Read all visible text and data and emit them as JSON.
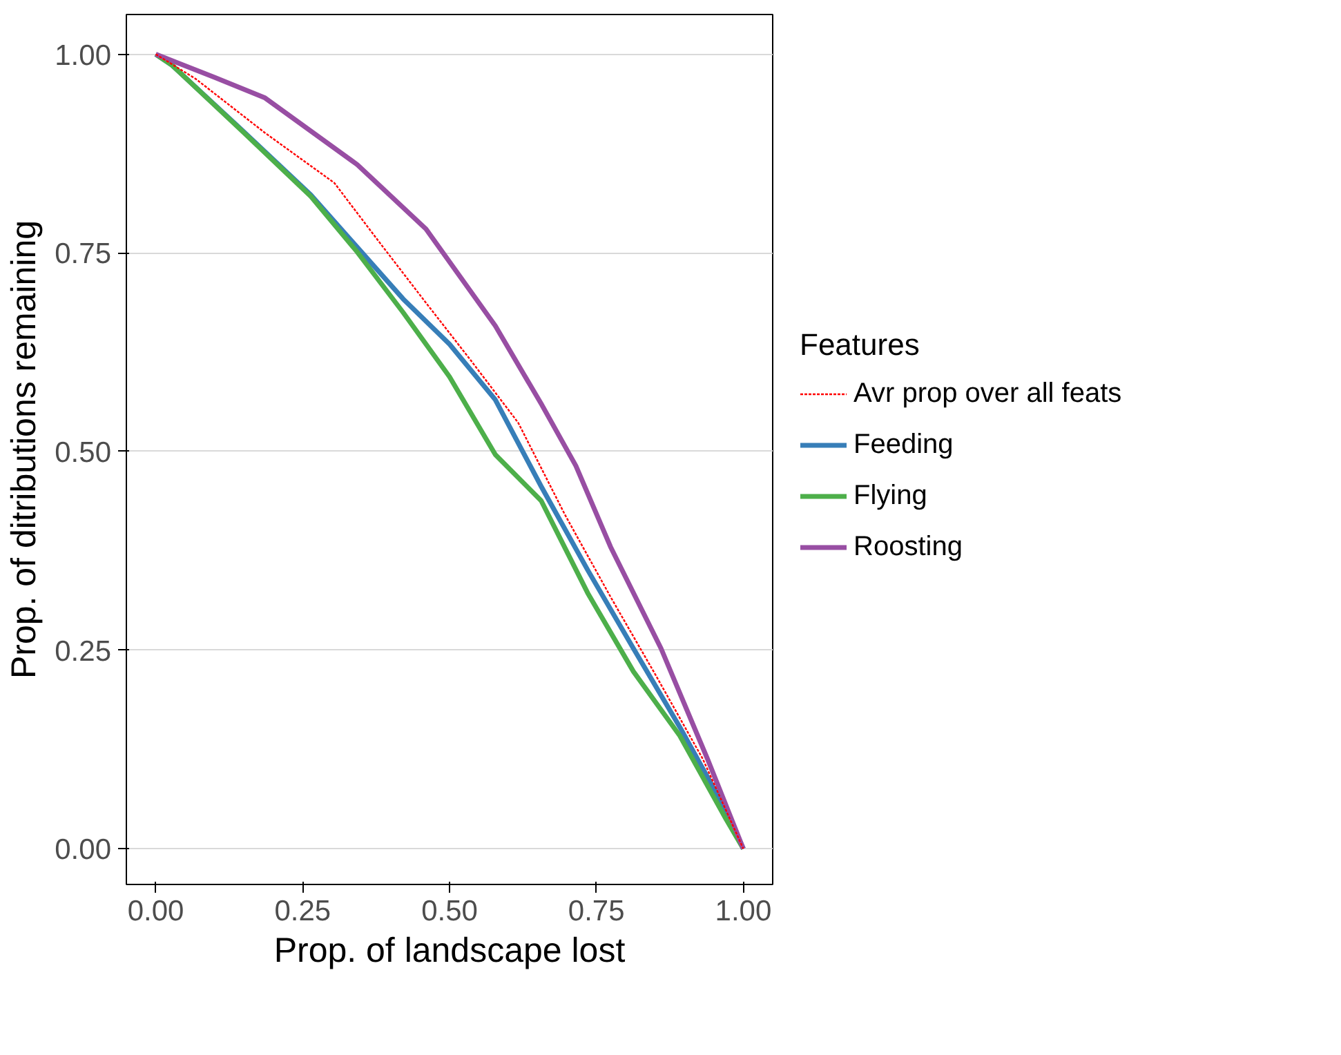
{
  "chart_data": {
    "type": "line",
    "xlabel": "Prop. of landscape lost",
    "ylabel": "Prop. of ditributions remaining",
    "legend_title": "Features",
    "legend": "right",
    "grid": "y",
    "xlim": [
      -0.05,
      1.05
    ],
    "ylim": [
      -0.045,
      1.05
    ],
    "xticks": [
      {
        "value": 0,
        "label": "0.00"
      },
      {
        "value": 0.25,
        "label": "0.25"
      },
      {
        "value": 0.5,
        "label": "0.50"
      },
      {
        "value": 0.75,
        "label": "0.75"
      },
      {
        "value": 1,
        "label": "1.00"
      }
    ],
    "yticks": [
      {
        "value": 0,
        "label": "0.00"
      },
      {
        "value": 0.25,
        "label": "0.25"
      },
      {
        "value": 0.5,
        "label": "0.50"
      },
      {
        "value": 0.75,
        "label": "0.75"
      },
      {
        "value": 1,
        "label": "1.00"
      }
    ],
    "series": [
      {
        "name": "Avr prop over all feats",
        "color": "#ff0000",
        "line_style": "dashed",
        "x": [
          0,
          0.068,
          0.186,
          0.304,
          0.382,
          0.46,
          0.539,
          0.617,
          0.696,
          0.774,
          0.852,
          0.931,
          1
        ],
        "values": [
          1,
          0.969,
          0.901,
          0.838,
          0.762,
          0.687,
          0.612,
          0.536,
          0.421,
          0.317,
          0.217,
          0.113,
          0
        ]
      },
      {
        "name": "Feeding",
        "color": "#377eb8",
        "line_style": "solid",
        "x": [
          0,
          0.028,
          0.146,
          0.264,
          0.343,
          0.421,
          0.5,
          0.578,
          0.656,
          0.735,
          0.813,
          0.892,
          0.97,
          1
        ],
        "values": [
          1,
          0.986,
          0.905,
          0.823,
          0.757,
          0.692,
          0.635,
          0.565,
          0.456,
          0.351,
          0.252,
          0.153,
          0.049,
          0
        ]
      },
      {
        "name": "Flying",
        "color": "#4daf4a",
        "line_style": "solid",
        "x": [
          0,
          0.028,
          0.146,
          0.264,
          0.343,
          0.421,
          0.5,
          0.578,
          0.656,
          0.735,
          0.813,
          0.892,
          0.97,
          1
        ],
        "values": [
          1,
          0.986,
          0.904,
          0.821,
          0.751,
          0.675,
          0.594,
          0.496,
          0.438,
          0.322,
          0.223,
          0.142,
          0.038,
          0
        ]
      },
      {
        "name": "Roosting",
        "color": "#984ea3",
        "line_style": "solid",
        "x": [
          0,
          0.1,
          0.186,
          0.343,
          0.46,
          0.578,
          0.656,
          0.715,
          0.774,
          0.86,
          0.939,
          1
        ],
        "values": [
          1,
          0.971,
          0.945,
          0.861,
          0.78,
          0.658,
          0.56,
          0.482,
          0.38,
          0.252,
          0.113,
          0
        ]
      }
    ]
  }
}
